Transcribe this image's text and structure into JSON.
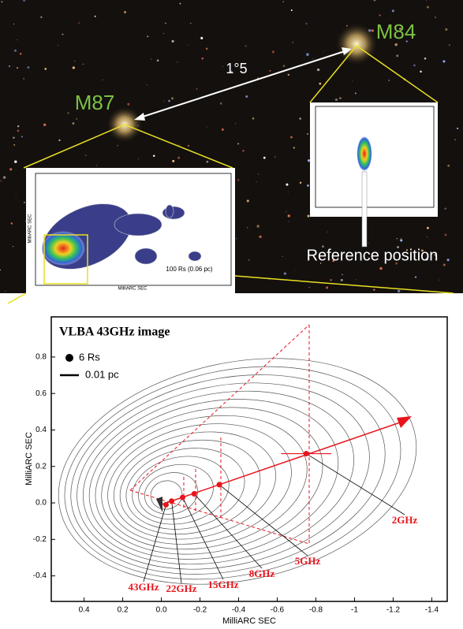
{
  "top_panel": {
    "m84": "M84",
    "m87": "M87",
    "separation": "1°5",
    "reference": "Reference position",
    "inset_scale": "100 Rs (0.06 pc)",
    "inset_xlabel": "MilliARC SEC",
    "inset_ylabel": "MilliARC SEC"
  },
  "chart_data": {
    "type": "scatter",
    "title": "VLBA 43GHz image",
    "legend_dot": "6 Rs",
    "legend_bar": "0.01 pc",
    "xlabel": "MilliARC SEC",
    "ylabel": "MilliARC SEC",
    "points": [
      {
        "label": "43GHz",
        "x": -0.024,
        "y": -0.01
      },
      {
        "label": "22GHz",
        "x": -0.053,
        "y": 0.01
      },
      {
        "label": "15GHz",
        "x": -0.11,
        "y": 0.03
      },
      {
        "label": "8GHz",
        "x": -0.17,
        "y": 0.05
      },
      {
        "label": "5GHz",
        "x": -0.3,
        "y": 0.1
      },
      {
        "label": "2GHz",
        "x": -0.75,
        "y": 0.27,
        "xerr": 0.13
      }
    ],
    "color": "#e8141c",
    "xlim": [
      0.57,
      -1.48
    ],
    "ylim": [
      -0.54,
      1.02
    ],
    "xticks": [
      0.4,
      0.2,
      {
        "value": 0,
        "label": "0.0"
      },
      -0.2,
      -0.4,
      -0.6,
      -0.8,
      -1.0,
      -1.2,
      -1.4
    ],
    "yticks": [
      -0.4,
      -0.2,
      {
        "value": 0,
        "label": "0.0"
      },
      0.2,
      0.4,
      0.6,
      0.8
    ]
  }
}
